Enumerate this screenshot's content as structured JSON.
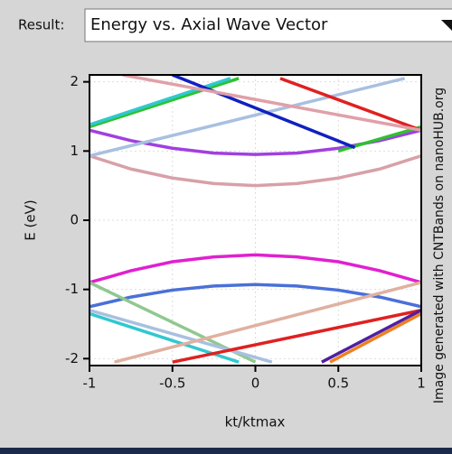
{
  "header": {
    "label": "Result:",
    "selection": "Energy vs. Axial Wave Vector"
  },
  "chart_data": {
    "type": "line",
    "xlabel": "kt/ktmax",
    "ylabel": "E (eV)",
    "annotation": "Image generated with CNTBands on nanoHUB.org",
    "xlim": [
      -1,
      1
    ],
    "ylim": [
      -2.1,
      2.1
    ],
    "xticks": [
      -1,
      -0.5,
      0,
      0.5,
      1
    ],
    "yticks": [
      -2,
      -1,
      0,
      1,
      2
    ],
    "grid": true,
    "series": [
      {
        "color": "#d8a0a8",
        "x": [
          -1,
          -0.75,
          -0.5,
          -0.25,
          0,
          0.25,
          0.5,
          0.75,
          1
        ],
        "values": [
          0.93,
          0.74,
          0.61,
          0.53,
          0.5,
          0.53,
          0.61,
          0.74,
          0.93
        ]
      },
      {
        "color": "#a040e0",
        "x": [
          -1,
          -0.75,
          -0.5,
          -0.25,
          0,
          0.25,
          0.5,
          0.75,
          1
        ],
        "values": [
          1.3,
          1.15,
          1.04,
          0.97,
          0.95,
          0.97,
          1.04,
          1.15,
          1.3
        ]
      },
      {
        "color": "#e020d0",
        "x": [
          -1,
          -0.75,
          -0.5,
          -0.25,
          0,
          0.25,
          0.5,
          0.75,
          1
        ],
        "values": [
          -0.9,
          -0.73,
          -0.6,
          -0.53,
          -0.5,
          -0.53,
          -0.6,
          -0.73,
          -0.9
        ]
      },
      {
        "color": "#4a70d8",
        "x": [
          -1,
          -0.75,
          -0.5,
          -0.25,
          0,
          0.25,
          0.5,
          0.75,
          1
        ],
        "values": [
          -1.25,
          -1.11,
          -1.01,
          -0.95,
          -0.93,
          -0.95,
          -1.01,
          -1.11,
          -1.25
        ]
      },
      {
        "color": "#30c030",
        "x": [
          -1,
          -0.1
        ],
        "values": [
          1.35,
          2.05
        ]
      },
      {
        "color": "#30c8d0",
        "x": [
          -1,
          -0.15
        ],
        "values": [
          1.38,
          2.05
        ]
      },
      {
        "color": "#a8c0e0",
        "x": [
          -1,
          0.9
        ],
        "values": [
          0.93,
          2.05
        ]
      },
      {
        "color": "#30c030",
        "x": [
          0.5,
          1
        ],
        "values": [
          1.0,
          1.35
        ]
      },
      {
        "color": "#1020c0",
        "x": [
          -0.5,
          0.6
        ],
        "values": [
          2.1,
          1.05
        ]
      },
      {
        "color": "#e02020",
        "x": [
          0.15,
          1
        ],
        "values": [
          2.05,
          1.3
        ]
      },
      {
        "color": "#e0a0a8",
        "x": [
          -0.8,
          1
        ],
        "values": [
          2.1,
          1.3
        ]
      },
      {
        "color": "#90c890",
        "x": [
          -1,
          0
        ],
        "values": [
          -0.9,
          -2.05
        ]
      },
      {
        "color": "#a8c0e0",
        "x": [
          -1,
          0.1
        ],
        "values": [
          -1.3,
          -2.05
        ]
      },
      {
        "color": "#30c8d0",
        "x": [
          -1,
          -0.1
        ],
        "values": [
          -1.35,
          -2.05
        ]
      },
      {
        "color": "#e0b0a0",
        "x": [
          -0.85,
          1
        ],
        "values": [
          -2.05,
          -0.9
        ]
      },
      {
        "color": "#e02020",
        "x": [
          -0.5,
          1
        ],
        "values": [
          -2.05,
          -1.3
        ]
      },
      {
        "color": "#5020a0",
        "x": [
          0.4,
          1
        ],
        "values": [
          -2.05,
          -1.3
        ]
      },
      {
        "color": "#f08020",
        "x": [
          0.45,
          1
        ],
        "values": [
          -2.05,
          -1.35
        ]
      }
    ]
  }
}
